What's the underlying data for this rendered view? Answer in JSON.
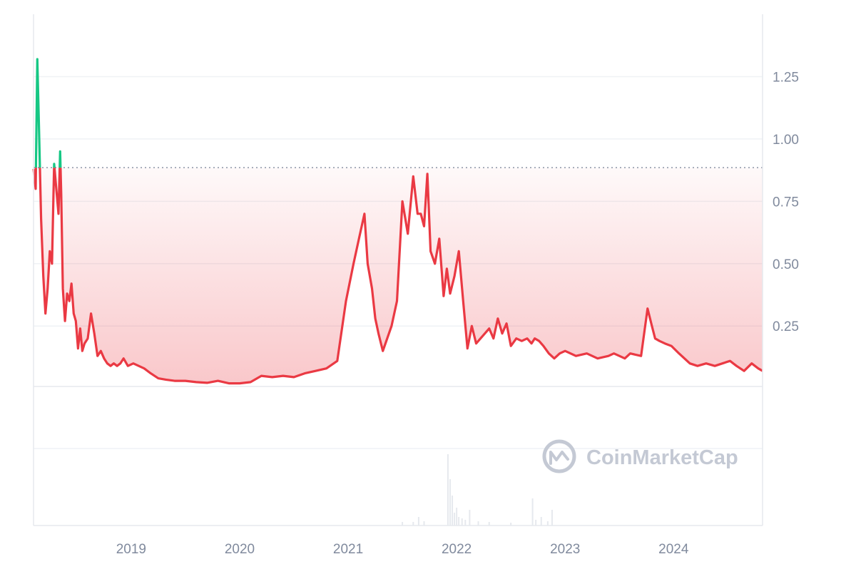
{
  "chart_data": {
    "type": "line",
    "title": "",
    "xlabel": "",
    "ylabel": "",
    "x_ticks": [
      "2019",
      "2020",
      "2021",
      "2022",
      "2023",
      "2024"
    ],
    "y_ticks": [
      "1.25",
      "1.00",
      "0.75",
      "0.50",
      "0.25"
    ],
    "ylim": [
      -0.55,
      1.5
    ],
    "xlim": [
      2018.1,
      2024.82
    ],
    "baseline": 0.885,
    "colors": {
      "above": "#16c784",
      "below": "#ea3943",
      "fill": "#ea3943",
      "grid": "#eff2f5",
      "baseline": "#808a9d"
    },
    "grid": true,
    "series": [
      {
        "x": [
          2018.1,
          2018.12,
          2018.135,
          2018.15,
          2018.17,
          2018.19,
          2018.21,
          2018.23,
          2018.25,
          2018.27,
          2018.29,
          2018.31,
          2018.33,
          2018.345,
          2018.355,
          2018.37,
          2018.39,
          2018.41,
          2018.43,
          2018.45,
          2018.47,
          2018.49,
          2018.51,
          2018.53,
          2018.55,
          2018.57,
          2018.6,
          2018.63,
          2018.66,
          2018.69,
          2018.72,
          2018.75,
          2018.78,
          2018.81,
          2018.84,
          2018.87,
          2018.9,
          2018.93,
          2018.97,
          2019.02,
          2019.07,
          2019.12,
          2019.18,
          2019.25,
          2019.32,
          2019.4,
          2019.5,
          2019.6,
          2019.7,
          2019.8,
          2019.9,
          2020.0,
          2020.1,
          2020.2,
          2020.3,
          2020.4,
          2020.5,
          2020.6,
          2020.7,
          2020.8,
          2020.9,
          2020.98,
          2021.05,
          2021.1,
          2021.15,
          2021.18,
          2021.22,
          2021.25,
          2021.28,
          2021.32,
          2021.36,
          2021.4,
          2021.45,
          2021.5,
          2021.55,
          2021.6,
          2021.64,
          2021.67,
          2021.7,
          2021.73,
          2021.76,
          2021.8,
          2021.84,
          2021.88,
          2021.91,
          2021.94,
          2021.98,
          2022.02,
          2022.06,
          2022.1,
          2022.14,
          2022.18,
          2022.22,
          2022.26,
          2022.3,
          2022.34,
          2022.38,
          2022.42,
          2022.46,
          2022.5,
          2022.55,
          2022.6,
          2022.65,
          2022.69,
          2022.72,
          2022.76,
          2022.8,
          2022.85,
          2022.9,
          2022.95,
          2023.0,
          2023.1,
          2023.2,
          2023.3,
          2023.4,
          2023.45,
          2023.5,
          2023.55,
          2023.6,
          2023.7,
          2023.76,
          2023.8,
          2023.83,
          2023.87,
          2023.92,
          2023.98,
          2024.05,
          2024.1,
          2024.15,
          2024.22,
          2024.3,
          2024.38,
          2024.45,
          2024.52,
          2024.58,
          2024.65,
          2024.72,
          2024.78,
          2024.82
        ],
        "y": [
          0.88,
          0.8,
          1.32,
          1.05,
          0.68,
          0.45,
          0.3,
          0.4,
          0.55,
          0.5,
          0.9,
          0.8,
          0.7,
          0.95,
          0.78,
          0.4,
          0.27,
          0.38,
          0.35,
          0.42,
          0.3,
          0.27,
          0.16,
          0.24,
          0.15,
          0.18,
          0.2,
          0.3,
          0.22,
          0.13,
          0.15,
          0.12,
          0.1,
          0.09,
          0.1,
          0.09,
          0.1,
          0.12,
          0.09,
          0.1,
          0.09,
          0.08,
          0.06,
          0.04,
          0.035,
          0.03,
          0.03,
          0.025,
          0.022,
          0.03,
          0.02,
          0.02,
          0.025,
          0.05,
          0.045,
          0.05,
          0.045,
          0.06,
          0.07,
          0.08,
          0.11,
          0.35,
          0.5,
          0.6,
          0.7,
          0.5,
          0.4,
          0.28,
          0.22,
          0.15,
          0.2,
          0.25,
          0.35,
          0.75,
          0.62,
          0.85,
          0.7,
          0.7,
          0.65,
          0.86,
          0.55,
          0.5,
          0.6,
          0.37,
          0.48,
          0.38,
          0.45,
          0.55,
          0.35,
          0.16,
          0.25,
          0.18,
          0.2,
          0.22,
          0.24,
          0.2,
          0.28,
          0.22,
          0.26,
          0.17,
          0.2,
          0.19,
          0.2,
          0.18,
          0.2,
          0.19,
          0.17,
          0.14,
          0.12,
          0.14,
          0.15,
          0.13,
          0.14,
          0.12,
          0.13,
          0.14,
          0.13,
          0.12,
          0.14,
          0.13,
          0.32,
          0.25,
          0.2,
          0.19,
          0.18,
          0.17,
          0.14,
          0.12,
          0.1,
          0.09,
          0.1,
          0.09,
          0.1,
          0.11,
          0.09,
          0.07,
          0.1,
          0.08,
          0.07
        ]
      }
    ],
    "volume": {
      "x": [
        2021.92,
        2021.94,
        2021.96,
        2021.98,
        2022.0,
        2022.02,
        2022.05,
        2022.08,
        2022.12,
        2022.2,
        2022.3,
        2022.5,
        2022.7,
        2022.73,
        2022.78,
        2022.84,
        2022.88,
        2021.5,
        2021.6,
        2021.65,
        2021.7
      ],
      "y": [
        1.0,
        0.65,
        0.42,
        0.18,
        0.25,
        0.12,
        0.1,
        0.08,
        0.22,
        0.06,
        0.05,
        0.04,
        0.38,
        0.08,
        0.12,
        0.06,
        0.22,
        0.05,
        0.05,
        0.12,
        0.06
      ]
    }
  },
  "watermark": {
    "text": "CoinMarketCap"
  }
}
